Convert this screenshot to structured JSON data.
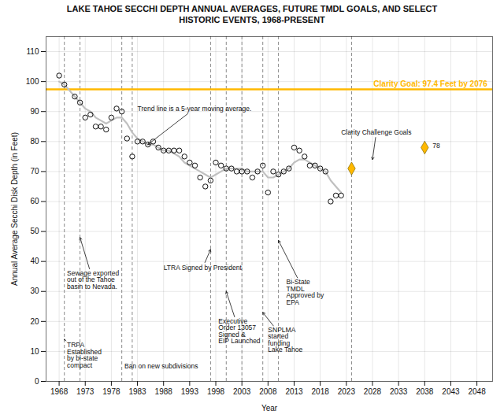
{
  "chart_data": {
    "type": "scatter",
    "title": "LAKE TAHOE SECCHI DEPTH ANNUAL AVERAGES, FUTURE TMDL GOALS, AND SELECT",
    "subtitle": "HISTORIC EVENTS, 1968-PRESENT",
    "xlabel": "Year",
    "ylabel": "Annual Average Secchi Disk Depth (in Feet)",
    "xlim": [
      1965.5,
      2051
    ],
    "ylim": [
      0,
      115
    ],
    "xticks": [
      1968,
      1973,
      1978,
      1983,
      1988,
      1993,
      1998,
      2003,
      2008,
      2013,
      2018,
      2023,
      2028,
      2033,
      2038,
      2043,
      2048
    ],
    "yticks": [
      0,
      10,
      20,
      30,
      40,
      50,
      60,
      70,
      80,
      90,
      100,
      110
    ],
    "grid": true,
    "series": [
      {
        "type": "scatter",
        "marker": "circle",
        "x": [
          1968,
          1969,
          1971,
          1972,
          1973,
          1974,
          1975,
          1976,
          1977,
          1978,
          1979,
          1980,
          1981,
          1982,
          1983,
          1984,
          1985,
          1986,
          1987,
          1988,
          1989,
          1990,
          1991,
          1992,
          1993,
          1994,
          1995,
          1996,
          1997,
          1998,
          1999,
          2000,
          2001,
          2002,
          2003,
          2004,
          2005,
          2006,
          2007,
          2008,
          2009,
          2010,
          2011,
          2012,
          2013,
          2014,
          2015,
          2016,
          2017,
          2018,
          2019,
          2020,
          2021,
          2022
        ],
        "values": [
          102,
          99,
          95,
          93,
          88,
          89,
          85,
          85,
          84,
          88,
          91,
          90,
          81,
          75,
          80,
          80,
          79,
          80,
          78,
          77,
          77,
          77,
          77,
          75,
          73,
          72,
          68,
          65,
          67,
          73,
          72,
          71,
          71,
          70,
          70,
          70,
          68,
          70,
          72,
          63,
          70,
          69,
          70,
          71,
          78,
          77,
          75,
          72,
          72,
          71,
          70,
          60,
          62,
          62
        ]
      },
      {
        "type": "line",
        "color": "#C0C0C0",
        "x": [
          1968,
          1969,
          1970,
          1971,
          1972,
          1973,
          1974,
          1975,
          1976,
          1977,
          1978,
          1979,
          1980,
          1981,
          1982,
          1983,
          1984,
          1985,
          1986,
          1987,
          1988,
          1989,
          1990,
          1991,
          1992,
          1993,
          1994,
          1995,
          1996,
          1997,
          1998,
          1999,
          2000,
          2001,
          2002,
          2003,
          2004,
          2005,
          2006,
          2007,
          2008,
          2009,
          2010,
          2011,
          2012,
          2013,
          2014,
          2015,
          2016,
          2017,
          2018,
          2019,
          2020,
          2021,
          2022
        ],
        "values": [
          100,
          99,
          97,
          95,
          93,
          91,
          90,
          88,
          87,
          86,
          87,
          88,
          88,
          86,
          83,
          81,
          80,
          79,
          79,
          78,
          77,
          77,
          76,
          75,
          73,
          72,
          71,
          70,
          69,
          68,
          69,
          70,
          71,
          71,
          71,
          71,
          70,
          70,
          70,
          70,
          68,
          68,
          69,
          70,
          71,
          73,
          74,
          74,
          73,
          72,
          71,
          70,
          67,
          65,
          63
        ]
      },
      {
        "type": "scatter",
        "marker": "diamond",
        "color": "#FFB800",
        "x": [
          2024,
          2038
        ],
        "values": [
          71,
          78
        ]
      }
    ],
    "hlines": [
      {
        "y": 97.4,
        "color": "#FFB800",
        "label": "Clarity Goal: 97.4 Feet by 2076",
        "label_x": 2050
      }
    ],
    "vlines": {
      "x": [
        1969,
        1972,
        1980,
        1982,
        1997,
        2000,
        2003,
        2007,
        2010,
        2024
      ],
      "line_style": "dashed"
    },
    "annotations": [
      {
        "text": "Clarity Challenge Goals",
        "x": 2022,
        "y": 83,
        "arrow_x": 2028,
        "arrow_y": 74
      },
      {
        "text": "78",
        "x": 2039.5,
        "y": 78.5
      },
      {
        "text": "Trend line is a 5-year moving average.",
        "x": 1983,
        "y": 91,
        "arrow_x": 1985,
        "arrow_y": 79
      },
      {
        "text": "Sewage exported\nout of the Tahoe\nbasin to Nevada.",
        "x": 1969.5,
        "y": 37,
        "arrow_x": 1972,
        "arrow_y": 48
      },
      {
        "text": "TRPA\nEstablished\nby bi-state\ncompact",
        "x": 1969.5,
        "y": 13,
        "arrow_x": 1969,
        "arrow_y": 14
      },
      {
        "text": "Ban on new subdivisions",
        "x": 1980.5,
        "y": 5
      },
      {
        "text": "LTRA Signed by President",
        "x": 1988,
        "y": 38,
        "arrow_x": 1997,
        "arrow_y": 44
      },
      {
        "text": "Executive\nOrder 13057\nSigned &\nEIP Launched",
        "x": 1998.5,
        "y": 21,
        "arrow_x": 2000,
        "arrow_y": 30
      },
      {
        "text": "SNPLMA\nstarted\nfunding\nLake Tahoe",
        "x": 2008,
        "y": 18,
        "arrow_x": 2007,
        "arrow_y": 23
      },
      {
        "text": "Bi-State\nTMDL\nApproved by\nEPA",
        "x": 2011.5,
        "y": 34,
        "arrow_x": 2010,
        "arrow_y": 47
      }
    ]
  }
}
